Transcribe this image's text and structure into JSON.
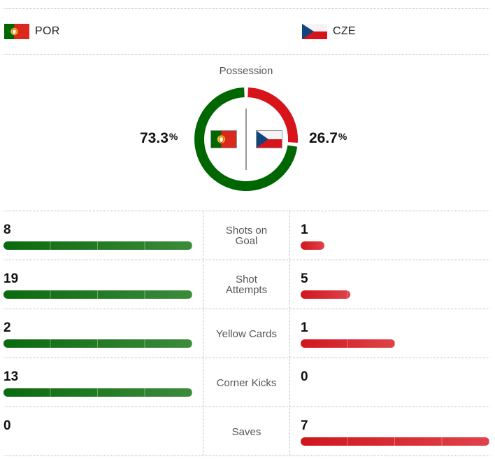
{
  "teams": {
    "home": {
      "code": "POR",
      "flag_icon": "portugal-flag-icon",
      "colors": [
        "#006600",
        "#da291c"
      ]
    },
    "away": {
      "code": "CZE",
      "flag_icon": "czech-flag-icon",
      "colors": [
        "#ffffff",
        "#d7141a",
        "#11457e"
      ]
    }
  },
  "possession": {
    "title": "Possession",
    "home_value": "73.3",
    "away_value": "26.7",
    "unit": "%",
    "home_fraction": 0.733,
    "away_fraction": 0.267,
    "home_color": "#006600",
    "away_color": "#d7141a"
  },
  "stats": [
    {
      "label_lines": [
        "Shots on",
        "Goal"
      ],
      "home": "8",
      "away": "1",
      "home_fraction": 1.0,
      "away_fraction": 0.125
    },
    {
      "label_lines": [
        "Shot",
        "Attempts"
      ],
      "home": "19",
      "away": "5",
      "home_fraction": 1.0,
      "away_fraction": 0.263
    },
    {
      "label_lines": [
        "Yellow Cards"
      ],
      "home": "2",
      "away": "1",
      "home_fraction": 1.0,
      "away_fraction": 0.5
    },
    {
      "label_lines": [
        "Corner Kicks"
      ],
      "home": "13",
      "away": "0",
      "home_fraction": 1.0,
      "away_fraction": 0.0
    },
    {
      "label_lines": [
        "Saves"
      ],
      "home": "0",
      "away": "7",
      "home_fraction": 0.0,
      "away_fraction": 1.0
    }
  ],
  "colors": {
    "home_bar": "#0a6a0e",
    "away_bar": "#d0161d",
    "divider": "#b8b8b8"
  }
}
